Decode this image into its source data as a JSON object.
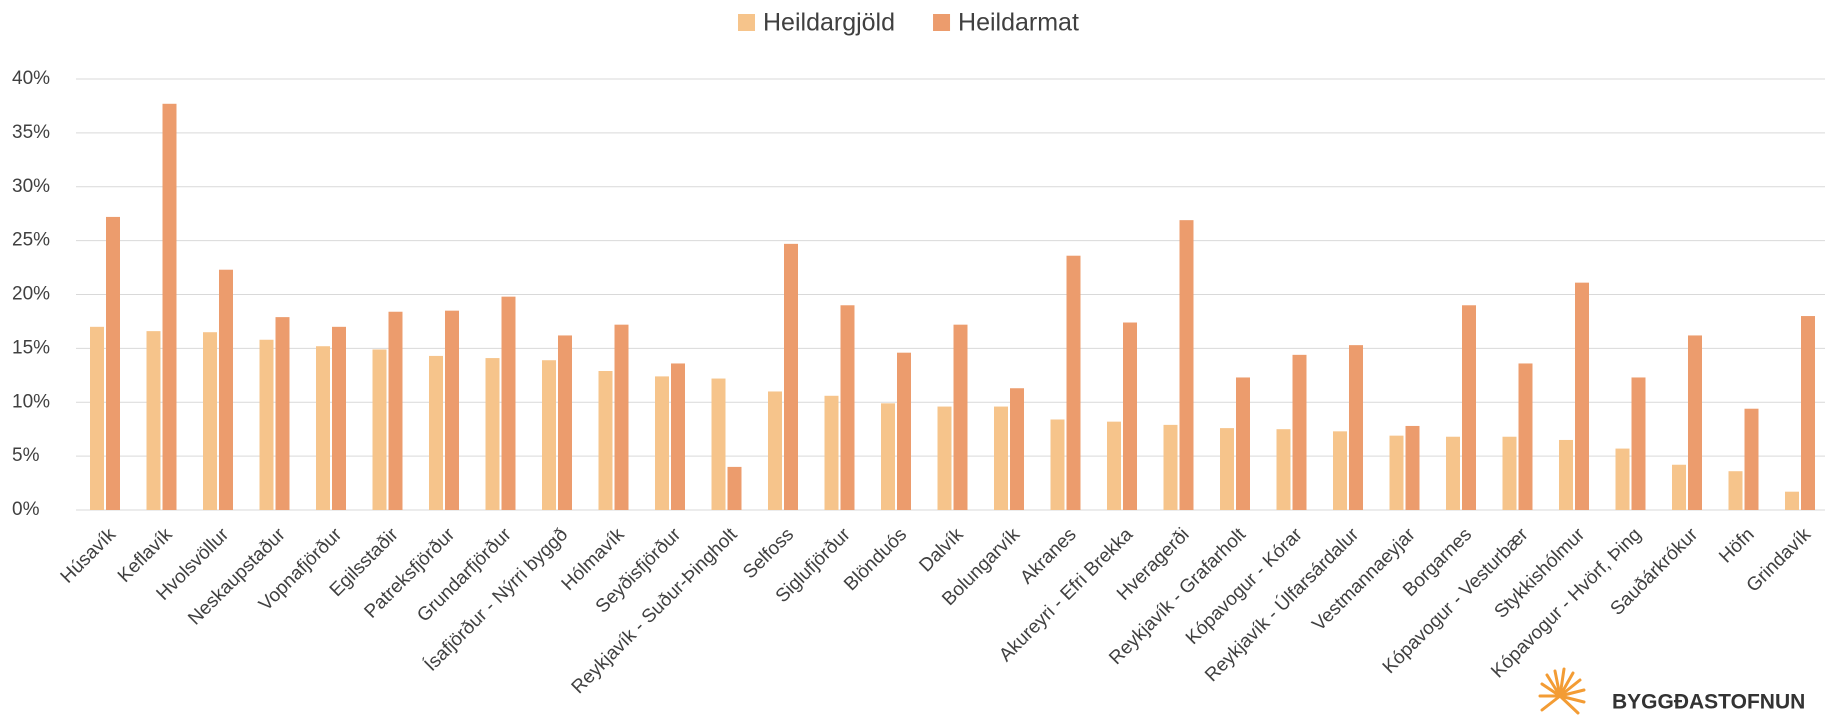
{
  "chart_data": {
    "type": "bar",
    "categories": [
      "Húsavík",
      "Keflavík",
      "Hvolsvöllur",
      "Neskaupstaður",
      "Vopnafjörður",
      "Egilsstaðir",
      "Patreksfjörður",
      "Grundarfjörður",
      "Ísafjörður - Nýrri byggð",
      "Hólmavík",
      "Seyðisfjörður",
      "Reykjavík - Suður-Þingholt",
      "Selfoss",
      "Siglufjörður",
      "Blönduós",
      "Dalvík",
      "Bolungarvík",
      "Akranes",
      "Akureyri - Efri Brekka",
      "Hveragerði",
      "Reykjavík - Grafarholt",
      "Kópavogur - Kórar",
      "Reykjavík - Úlfarsárdalur",
      "Vestmannaeyjar",
      "Borgarnes",
      "Kópavogur - Vesturbær",
      "Stykkishólmur",
      "Kópavogur - Hvörf, Þing",
      "Sauðárkrókur",
      "Höfn",
      "Grindavík"
    ],
    "series": [
      {
        "name": "Heildargjöld",
        "color": "#f6c48b",
        "values": [
          17.0,
          16.6,
          16.5,
          15.8,
          15.2,
          14.9,
          14.3,
          14.1,
          13.9,
          12.9,
          12.4,
          12.2,
          11.0,
          10.6,
          9.9,
          9.6,
          9.6,
          8.4,
          8.2,
          7.9,
          7.6,
          7.5,
          7.3,
          6.9,
          6.8,
          6.8,
          6.5,
          5.7,
          4.2,
          3.6,
          1.7
        ]
      },
      {
        "name": "Heildarmat",
        "color": "#ec9c6d",
        "values": [
          27.2,
          37.7,
          22.3,
          17.9,
          17.0,
          18.4,
          18.5,
          19.8,
          16.2,
          17.2,
          13.6,
          4.0,
          24.7,
          19.0,
          14.6,
          17.2,
          11.3,
          23.6,
          17.4,
          26.9,
          12.3,
          14.4,
          15.3,
          7.8,
          19.0,
          13.6,
          21.1,
          12.3,
          16.2,
          9.4,
          18.0
        ]
      }
    ],
    "ylim": [
      0,
      40
    ],
    "yticks": [
      {
        "value": 0,
        "label": "0%"
      },
      {
        "value": 5,
        "label": "5%"
      },
      {
        "value": 10,
        "label": "10%"
      },
      {
        "value": 15,
        "label": "15%"
      },
      {
        "value": 20,
        "label": "20%"
      },
      {
        "value": 25,
        "label": "25%"
      },
      {
        "value": 30,
        "label": "30%"
      },
      {
        "value": 35,
        "label": "35%"
      },
      {
        "value": 40,
        "label": "40%"
      }
    ],
    "grid": true,
    "legend": "top",
    "logo": "BYGGÐASTOFNUN"
  }
}
